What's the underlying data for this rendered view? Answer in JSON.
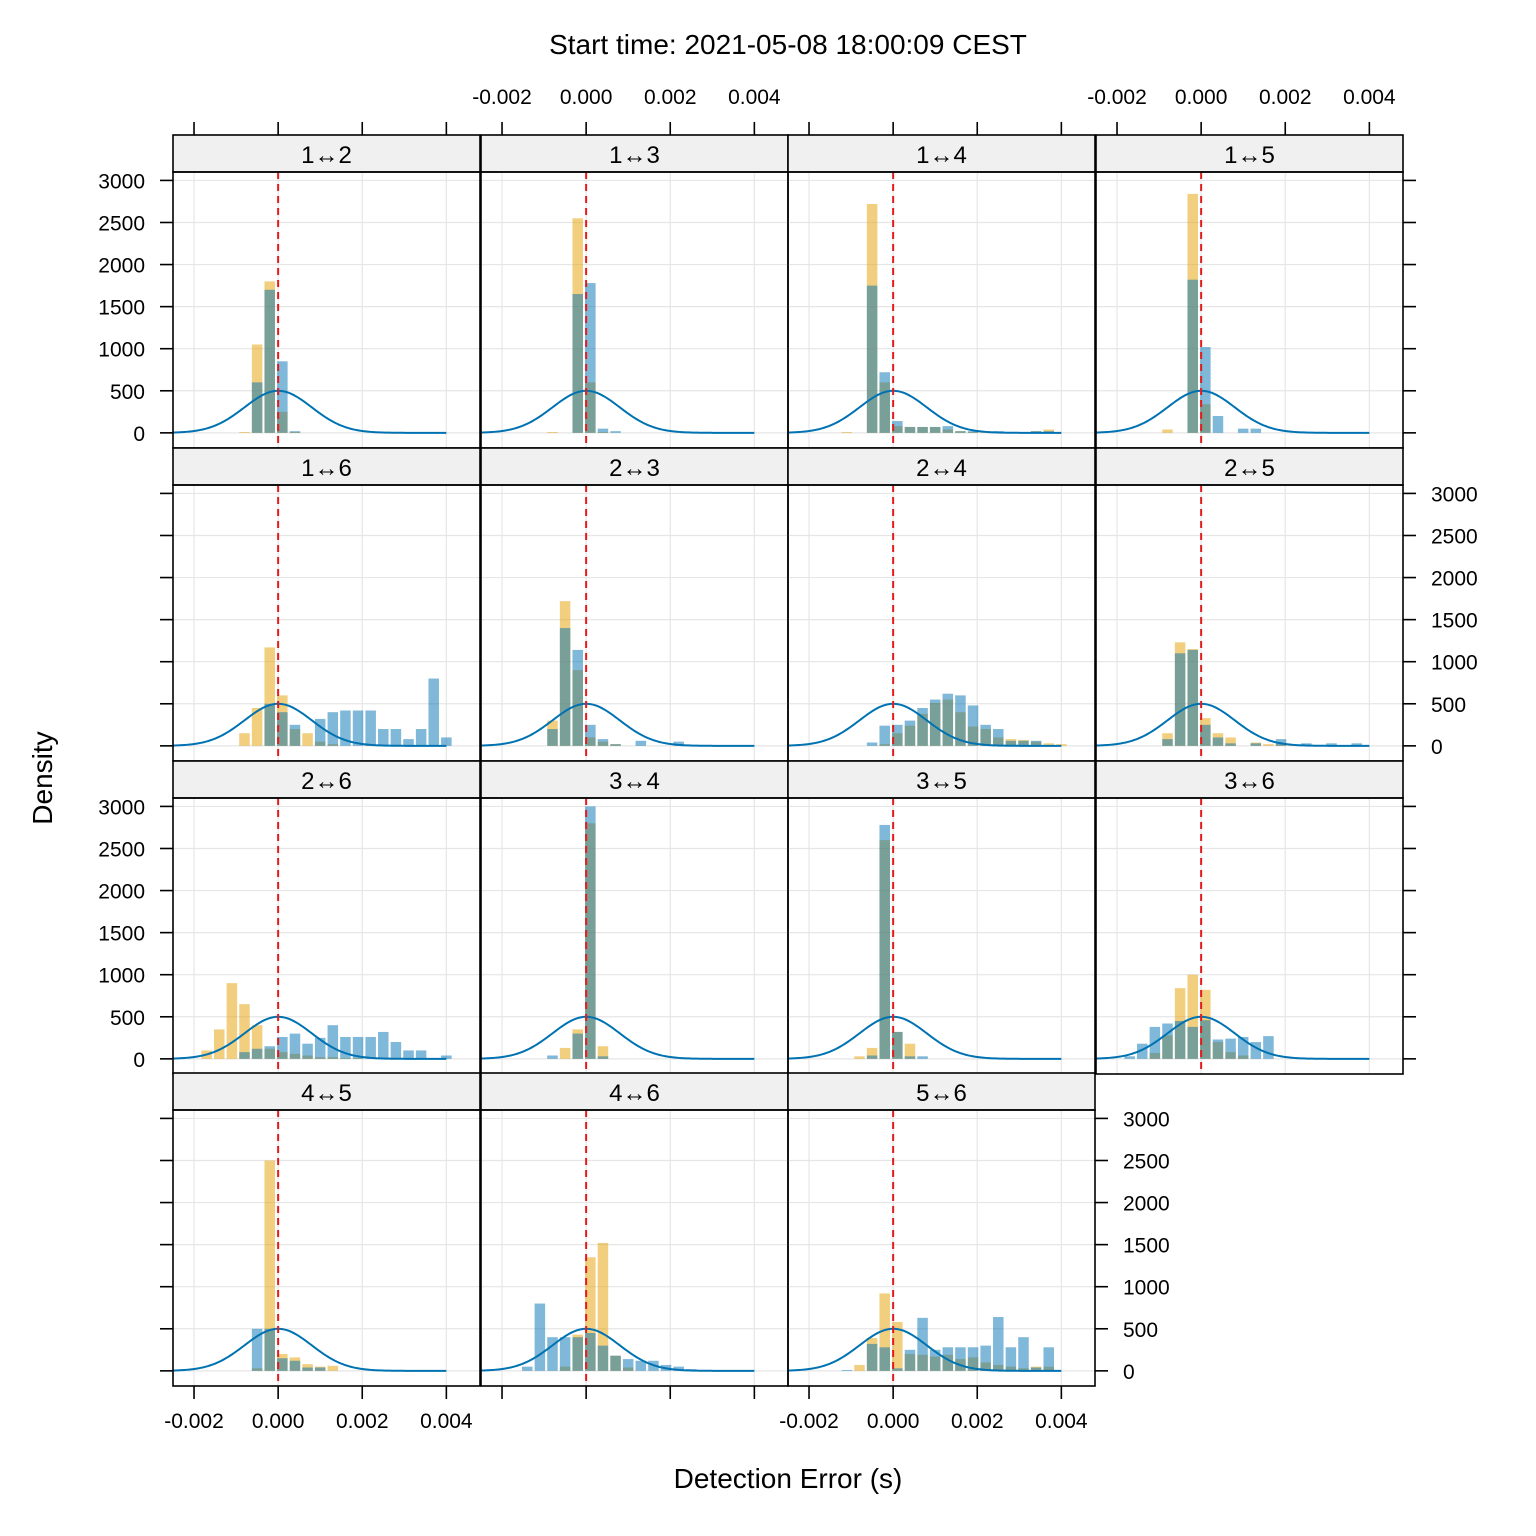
{
  "chart_data": {
    "type": "bar",
    "title": "Start time: 2021-05-08 18:00:09 CEST",
    "xlabel": "Detection Error (s)",
    "ylabel": "Density",
    "xlim": [
      -0.0025,
      0.0048
    ],
    "ylim": [
      -180,
      3100
    ],
    "x_ticks": [
      -0.002,
      0.0,
      0.002,
      0.004
    ],
    "x_tick_labels": [
      "-0.002",
      "0.000",
      "0.002",
      "0.004"
    ],
    "y_ticks": [
      0,
      500,
      1000,
      1500,
      2000,
      2500,
      3000
    ],
    "y_tick_labels": [
      "0",
      "500",
      "1000",
      "1500",
      "2000",
      "2500",
      "3000"
    ],
    "grid": true,
    "layout": "4 columns x 4 rows, filled left-to-right, top-to-bottom (bottom row first in display order)",
    "colors": {
      "series_a": "#E69F00",
      "series_b": "#0072B2",
      "reference_line": "#E41A1C",
      "normal_curve": "#0072B2",
      "strip_background": "#F0F0F0",
      "grid": "#E6E6E6"
    },
    "reference_line": {
      "x": 0.0,
      "style": "dashed"
    },
    "normal_curve": {
      "mean": 0.0,
      "sd": 0.0008,
      "peak_density": 500
    },
    "bin_width": 0.00025,
    "series_names": [
      "series_a (orange)",
      "series_b (blue)"
    ],
    "panels": [
      {
        "label": "1↔2",
        "a": [
          [
            -0.0008,
            10
          ],
          [
            -0.0005,
            1050
          ],
          [
            -0.0002,
            1800
          ],
          [
            0.0001,
            250
          ],
          [
            0.0004,
            10
          ]
        ],
        "b": [
          [
            -0.0005,
            600
          ],
          [
            -0.0002,
            1700
          ],
          [
            0.0001,
            850
          ],
          [
            0.0004,
            20
          ]
        ]
      },
      {
        "label": "1↔3",
        "a": [
          [
            -0.0008,
            10
          ],
          [
            -0.0002,
            2550
          ],
          [
            0.0001,
            600
          ],
          [
            0.0004,
            10
          ]
        ],
        "b": [
          [
            -0.0002,
            1650
          ],
          [
            0.0001,
            1780
          ],
          [
            0.0004,
            50
          ],
          [
            0.0007,
            20
          ]
        ]
      },
      {
        "label": "1↔4",
        "a": [
          [
            -0.0011,
            10
          ],
          [
            -0.0005,
            2720
          ],
          [
            -0.0002,
            600
          ],
          [
            0.0001,
            80
          ],
          [
            0.0004,
            70
          ],
          [
            0.0007,
            70
          ],
          [
            0.001,
            70
          ],
          [
            0.0013,
            40
          ],
          [
            0.0016,
            20
          ],
          [
            0.0019,
            10
          ],
          [
            0.0022,
            20
          ],
          [
            0.0025,
            10
          ],
          [
            0.0028,
            10
          ],
          [
            0.0031,
            10
          ],
          [
            0.0034,
            20
          ],
          [
            0.0037,
            40
          ]
        ],
        "b": [
          [
            -0.0005,
            1750
          ],
          [
            -0.0002,
            720
          ],
          [
            0.0001,
            140
          ],
          [
            0.0004,
            70
          ],
          [
            0.0007,
            70
          ],
          [
            0.001,
            70
          ],
          [
            0.0013,
            80
          ],
          [
            0.0016,
            20
          ],
          [
            0.0019,
            20
          ],
          [
            0.0025,
            20
          ],
          [
            0.0034,
            20
          ],
          [
            0.0037,
            20
          ]
        ]
      },
      {
        "label": "1↔5",
        "a": [
          [
            -0.0008,
            40
          ],
          [
            -0.0002,
            2840
          ],
          [
            0.0001,
            340
          ]
        ],
        "b": [
          [
            -0.0002,
            1820
          ],
          [
            0.0001,
            1020
          ],
          [
            0.0004,
            200
          ],
          [
            0.001,
            50
          ],
          [
            0.0013,
            50
          ]
        ]
      },
      {
        "label": "1↔6",
        "a": [
          [
            -0.0008,
            150
          ],
          [
            -0.0005,
            450
          ],
          [
            -0.0002,
            1170
          ],
          [
            0.0001,
            600
          ],
          [
            0.0004,
            200
          ],
          [
            0.0007,
            150
          ],
          [
            0.001,
            50
          ],
          [
            0.0013,
            20
          ],
          [
            0.0022,
            10
          ],
          [
            0.0025,
            10
          ]
        ],
        "b": [
          [
            -0.0002,
            500
          ],
          [
            0.0001,
            400
          ],
          [
            0.0004,
            250
          ],
          [
            0.001,
            320
          ],
          [
            0.0013,
            400
          ],
          [
            0.0016,
            420
          ],
          [
            0.0019,
            420
          ],
          [
            0.0022,
            420
          ],
          [
            0.0025,
            200
          ],
          [
            0.0028,
            200
          ],
          [
            0.0031,
            80
          ],
          [
            0.0034,
            200
          ],
          [
            0.0037,
            800
          ],
          [
            0.004,
            100
          ]
        ]
      },
      {
        "label": "2↔3",
        "a": [
          [
            -0.0008,
            300
          ],
          [
            -0.0005,
            1720
          ],
          [
            -0.0002,
            900
          ],
          [
            0.0001,
            100
          ],
          [
            0.0004,
            50
          ],
          [
            0.0007,
            20
          ]
        ],
        "b": [
          [
            -0.0008,
            200
          ],
          [
            -0.0005,
            1400
          ],
          [
            -0.0002,
            1140
          ],
          [
            0.0001,
            250
          ],
          [
            0.0004,
            80
          ],
          [
            0.0007,
            20
          ],
          [
            0.0013,
            60
          ],
          [
            0.0022,
            50
          ]
        ]
      },
      {
        "label": "2↔4",
        "a": [
          [
            -0.0002,
            20
          ],
          [
            0.0001,
            150
          ],
          [
            0.0004,
            240
          ],
          [
            0.0007,
            380
          ],
          [
            0.001,
            510
          ],
          [
            0.0013,
            550
          ],
          [
            0.0016,
            400
          ],
          [
            0.0019,
            230
          ],
          [
            0.0022,
            200
          ],
          [
            0.0025,
            100
          ],
          [
            0.0028,
            80
          ],
          [
            0.0031,
            70
          ],
          [
            0.0034,
            50
          ],
          [
            0.0037,
            30
          ],
          [
            0.004,
            20
          ]
        ],
        "b": [
          [
            -0.0005,
            40
          ],
          [
            -0.0002,
            240
          ],
          [
            0.0001,
            250
          ],
          [
            0.0004,
            300
          ],
          [
            0.0007,
            450
          ],
          [
            0.001,
            550
          ],
          [
            0.0013,
            620
          ],
          [
            0.0016,
            600
          ],
          [
            0.0019,
            480
          ],
          [
            0.0022,
            250
          ],
          [
            0.0025,
            200
          ],
          [
            0.0028,
            60
          ],
          [
            0.0031,
            60
          ],
          [
            0.0034,
            60
          ]
        ]
      },
      {
        "label": "2↔5",
        "a": [
          [
            -0.0008,
            150
          ],
          [
            -0.0005,
            1230
          ],
          [
            -0.0002,
            1150
          ],
          [
            0.0001,
            330
          ],
          [
            0.0004,
            150
          ],
          [
            0.0007,
            100
          ],
          [
            0.0013,
            40
          ],
          [
            0.0016,
            20
          ],
          [
            0.0019,
            30
          ],
          [
            0.0022,
            10
          ],
          [
            0.0025,
            10
          ],
          [
            0.0031,
            10
          ],
          [
            0.0037,
            10
          ]
        ],
        "b": [
          [
            -0.0008,
            80
          ],
          [
            -0.0005,
            1100
          ],
          [
            -0.0002,
            1140
          ],
          [
            0.0001,
            250
          ],
          [
            0.0004,
            100
          ],
          [
            0.0007,
            30
          ],
          [
            0.0013,
            30
          ],
          [
            0.0019,
            80
          ],
          [
            0.0025,
            30
          ],
          [
            0.0031,
            30
          ],
          [
            0.0037,
            30
          ]
        ]
      },
      {
        "label": "2↔6",
        "a": [
          [
            -0.0017,
            100
          ],
          [
            -0.0014,
            350
          ],
          [
            -0.0011,
            900
          ],
          [
            -0.0008,
            650
          ],
          [
            -0.0005,
            400
          ],
          [
            -0.0002,
            120
          ],
          [
            0.0001,
            80
          ],
          [
            0.0004,
            60
          ],
          [
            0.0007,
            40
          ],
          [
            0.001,
            20
          ],
          [
            0.0013,
            20
          ],
          [
            0.0016,
            10
          ],
          [
            0.0019,
            10
          ]
        ],
        "b": [
          [
            -0.0008,
            80
          ],
          [
            -0.0005,
            120
          ],
          [
            -0.0002,
            150
          ],
          [
            0.0001,
            260
          ],
          [
            0.0004,
            300
          ],
          [
            0.0007,
            180
          ],
          [
            0.001,
            250
          ],
          [
            0.0013,
            400
          ],
          [
            0.0016,
            260
          ],
          [
            0.0019,
            260
          ],
          [
            0.0022,
            260
          ],
          [
            0.0025,
            320
          ],
          [
            0.0028,
            200
          ],
          [
            0.0031,
            100
          ],
          [
            0.0034,
            100
          ],
          [
            0.004,
            40
          ]
        ]
      },
      {
        "label": "3↔4",
        "a": [
          [
            -0.0005,
            130
          ],
          [
            -0.0002,
            350
          ],
          [
            0.0001,
            2800
          ],
          [
            0.0004,
            150
          ]
        ],
        "b": [
          [
            -0.0008,
            40
          ],
          [
            -0.0002,
            300
          ],
          [
            0.0001,
            3000
          ],
          [
            0.0004,
            30
          ]
        ]
      },
      {
        "label": "3↔5",
        "a": [
          [
            -0.0008,
            30
          ],
          [
            -0.0005,
            130
          ],
          [
            -0.0002,
            2600
          ],
          [
            0.0001,
            320
          ],
          [
            0.0004,
            180
          ]
        ],
        "b": [
          [
            -0.0005,
            40
          ],
          [
            -0.0002,
            2780
          ],
          [
            0.0001,
            320
          ],
          [
            0.0004,
            30
          ],
          [
            0.0007,
            30
          ]
        ]
      },
      {
        "label": "3↔6",
        "a": [
          [
            -0.0011,
            70
          ],
          [
            -0.0008,
            280
          ],
          [
            -0.0005,
            840
          ],
          [
            -0.0002,
            1000
          ],
          [
            0.0001,
            820
          ],
          [
            0.0004,
            200
          ],
          [
            0.0007,
            80
          ],
          [
            0.001,
            40
          ]
        ],
        "b": [
          [
            -0.0017,
            30
          ],
          [
            -0.0014,
            180
          ],
          [
            -0.0011,
            380
          ],
          [
            -0.0008,
            420
          ],
          [
            -0.0005,
            450
          ],
          [
            -0.0002,
            380
          ],
          [
            0.0001,
            460
          ],
          [
            0.0004,
            230
          ],
          [
            0.0007,
            240
          ],
          [
            0.001,
            260
          ],
          [
            0.0013,
            200
          ],
          [
            0.0016,
            270
          ]
        ]
      },
      {
        "label": "4↔5",
        "a": [
          [
            -0.0005,
            30
          ],
          [
            -0.0002,
            2500
          ],
          [
            0.0001,
            200
          ],
          [
            0.0004,
            160
          ],
          [
            0.0007,
            80
          ],
          [
            0.001,
            50
          ],
          [
            0.0013,
            60
          ]
        ],
        "b": [
          [
            -0.0005,
            500
          ],
          [
            -0.0002,
            500
          ],
          [
            0.0001,
            150
          ],
          [
            0.0004,
            120
          ],
          [
            0.0007,
            40
          ],
          [
            0.001,
            40
          ]
        ]
      },
      {
        "label": "4↔6",
        "a": [
          [
            -0.0005,
            50
          ],
          [
            -0.0002,
            430
          ],
          [
            0.0001,
            1350
          ],
          [
            0.0004,
            1520
          ],
          [
            0.0007,
            180
          ],
          [
            0.001,
            40
          ]
        ],
        "b": [
          [
            -0.0014,
            50
          ],
          [
            -0.0011,
            800
          ],
          [
            -0.0008,
            400
          ],
          [
            -0.0005,
            400
          ],
          [
            -0.0002,
            400
          ],
          [
            0.0001,
            450
          ],
          [
            0.0004,
            300
          ],
          [
            0.0007,
            180
          ],
          [
            0.001,
            140
          ],
          [
            0.0013,
            120
          ],
          [
            0.0016,
            120
          ],
          [
            0.0019,
            70
          ],
          [
            0.0022,
            50
          ],
          [
            0.0025,
            20
          ]
        ]
      },
      {
        "label": "5↔6",
        "a": [
          [
            -0.0008,
            70
          ],
          [
            -0.0005,
            390
          ],
          [
            -0.0002,
            920
          ],
          [
            0.0001,
            580
          ],
          [
            0.0004,
            200
          ],
          [
            0.0007,
            190
          ],
          [
            0.001,
            170
          ],
          [
            0.0013,
            190
          ],
          [
            0.0016,
            140
          ],
          [
            0.0019,
            160
          ],
          [
            0.0022,
            100
          ],
          [
            0.0025,
            70
          ],
          [
            0.0028,
            50
          ],
          [
            0.0031,
            30
          ],
          [
            0.0034,
            50
          ],
          [
            0.0037,
            50
          ]
        ],
        "b": [
          [
            -0.0011,
            10
          ],
          [
            -0.0005,
            320
          ],
          [
            -0.0002,
            280
          ],
          [
            0.0001,
            30
          ],
          [
            0.0004,
            250
          ],
          [
            0.0007,
            630
          ],
          [
            0.001,
            250
          ],
          [
            0.0013,
            280
          ],
          [
            0.0016,
            280
          ],
          [
            0.0019,
            280
          ],
          [
            0.0022,
            300
          ],
          [
            0.0025,
            640
          ],
          [
            0.0028,
            280
          ],
          [
            0.0031,
            400
          ],
          [
            0.0034,
            40
          ],
          [
            0.0037,
            280
          ]
        ]
      }
    ]
  }
}
